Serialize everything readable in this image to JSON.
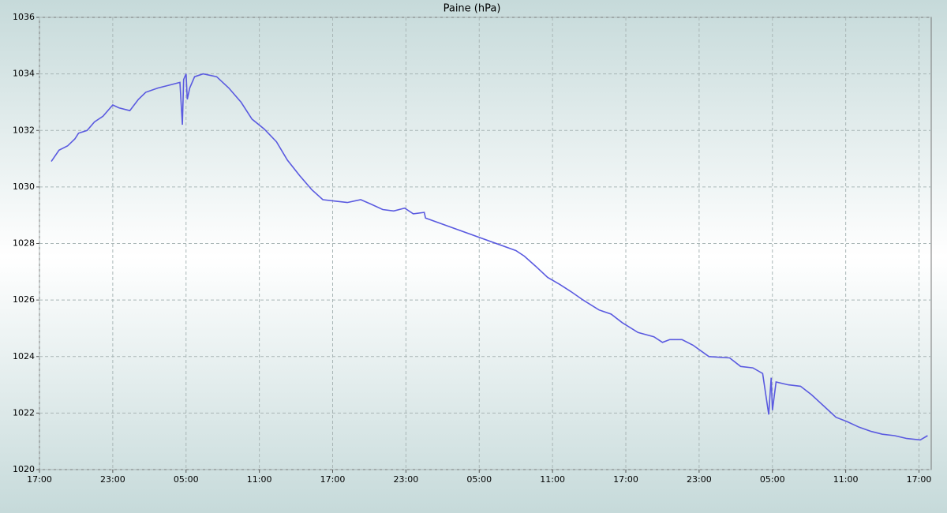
{
  "chart_data": {
    "type": "line",
    "title": "Paine (hPa)",
    "x": [
      0.97,
      1.6,
      2.3,
      2.9,
      3.2,
      3.9,
      4.5,
      5.2,
      6.0,
      6.5,
      7.4,
      8.1,
      8.7,
      9.7,
      10.6,
      11.5,
      11.7,
      11.8,
      12.0,
      12.1,
      12.3,
      12.7,
      13.4,
      14.5,
      15.5,
      16.5,
      17.4,
      18.4,
      19.4,
      20.3,
      21.3,
      22.3,
      23.2,
      24.2,
      25.2,
      26.3,
      27.1,
      28.1,
      29.0,
      29.9,
      30.6,
      31.5,
      31.6,
      39.0,
      39.7,
      40.6,
      41.6,
      42.6,
      43.5,
      44.5,
      45.8,
      46.8,
      47.7,
      49.0,
      50.3,
      51.0,
      51.6,
      52.6,
      53.5,
      54.8,
      56.5,
      57.4,
      58.4,
      59.2,
      59.7,
      59.9,
      60.0,
      60.3,
      61.3,
      62.3,
      63.2,
      64.2,
      65.2,
      66.1,
      67.1,
      68.1,
      69.0,
      70.0,
      71.0,
      72.1,
      72.7
    ],
    "series": [
      {
        "color": "#5a5ae0",
        "values": [
          1030.9,
          1031.3,
          1031.45,
          1031.7,
          1031.9,
          1032.0,
          1032.3,
          1032.5,
          1032.9,
          1032.8,
          1032.7,
          1033.1,
          1033.35,
          1033.5,
          1033.6,
          1033.7,
          1032.2,
          1033.8,
          1034.0,
          1033.1,
          1033.5,
          1033.9,
          1034.0,
          1033.9,
          1033.5,
          1033.0,
          1032.4,
          1032.05,
          1031.6,
          1030.95,
          1030.4,
          1029.9,
          1029.55,
          1029.5,
          1029.45,
          1029.55,
          1029.4,
          1029.2,
          1029.15,
          1029.25,
          1029.05,
          1029.1,
          1028.9,
          1027.75,
          1027.55,
          1027.2,
          1026.8,
          1026.55,
          1026.3,
          1026.0,
          1025.65,
          1025.5,
          1025.2,
          1024.85,
          1024.7,
          1024.5,
          1024.6,
          1024.6,
          1024.4,
          1024.0,
          1023.95,
          1023.65,
          1023.6,
          1023.4,
          1021.95,
          1023.25,
          1022.1,
          1023.1,
          1023.0,
          1022.95,
          1022.65,
          1022.25,
          1021.85,
          1021.7,
          1021.5,
          1021.35,
          1021.25,
          1021.2,
          1021.1,
          1021.05,
          1021.2
        ]
      }
    ],
    "xlim": [
      0,
      73
    ],
    "xticks": [
      {
        "value": 0,
        "label": "17:00"
      },
      {
        "value": 6,
        "label": "23:00"
      },
      {
        "value": 12,
        "label": "05:00"
      },
      {
        "value": 18,
        "label": "11:00"
      },
      {
        "value": 24,
        "label": "17:00"
      },
      {
        "value": 30,
        "label": "23:00"
      },
      {
        "value": 36,
        "label": "05:00"
      },
      {
        "value": 42,
        "label": "11:00"
      },
      {
        "value": 48,
        "label": "17:00"
      },
      {
        "value": 54,
        "label": "23:00"
      },
      {
        "value": 60,
        "label": "05:00"
      },
      {
        "value": 66,
        "label": "11:00"
      },
      {
        "value": 72,
        "label": "17:00"
      }
    ],
    "ylim": [
      1020,
      1036
    ],
    "yticks": [
      1020,
      1022,
      1024,
      1026,
      1028,
      1030,
      1032,
      1034,
      1036
    ],
    "grid": true
  }
}
